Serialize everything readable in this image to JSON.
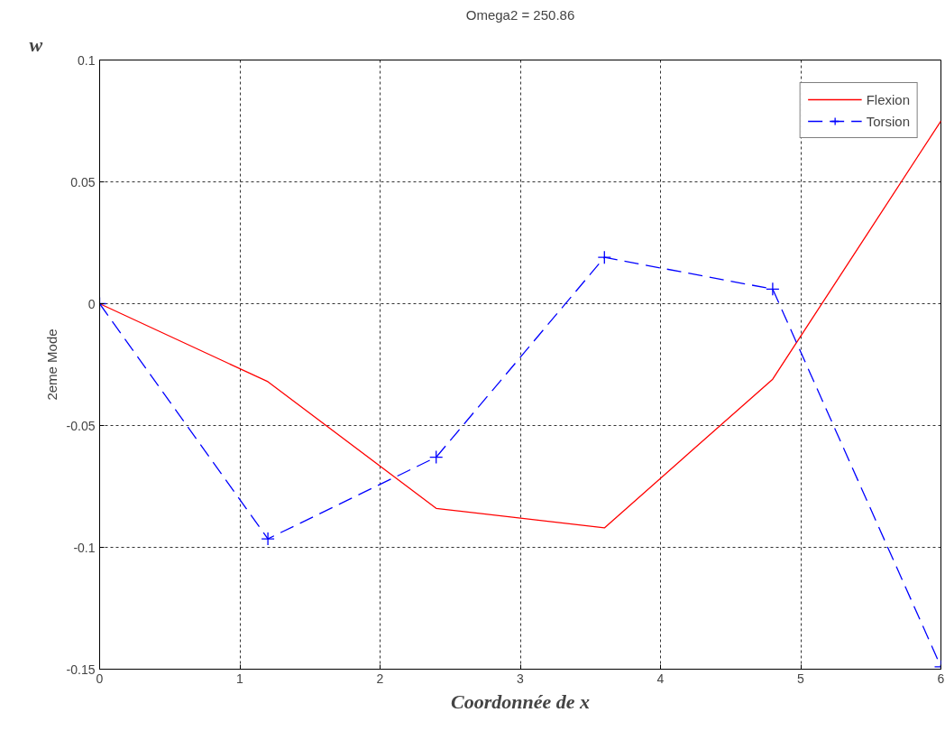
{
  "chart_data": {
    "type": "line",
    "title": "Omega2 = 250.86",
    "xlabel": "Coordonnée de x",
    "ylabel": "2eme Mode",
    "annotations": [
      "w"
    ],
    "x": [
      0,
      1.2,
      2.4,
      3.6,
      4.8,
      6
    ],
    "series": [
      {
        "name": "Flexion",
        "color": "#ff0000",
        "values": [
          0,
          -0.032,
          -0.084,
          -0.092,
          -0.031,
          0.075
        ],
        "marker": "none",
        "line_style": "solid"
      },
      {
        "name": "Torsion",
        "color": "#0000ff",
        "values": [
          0,
          -0.0965,
          -0.063,
          0.019,
          0.006,
          -0.149
        ],
        "marker": "cross",
        "line_style": "dashed"
      }
    ],
    "xlim": [
      0,
      6
    ],
    "ylim": [
      -0.15,
      0.1
    ],
    "xticks": [
      0,
      1,
      2,
      3,
      4,
      5,
      6
    ],
    "yticks": [
      -0.15,
      -0.1,
      -0.05,
      0,
      0.05,
      0.1
    ],
    "grid": true,
    "legend": "top right"
  }
}
